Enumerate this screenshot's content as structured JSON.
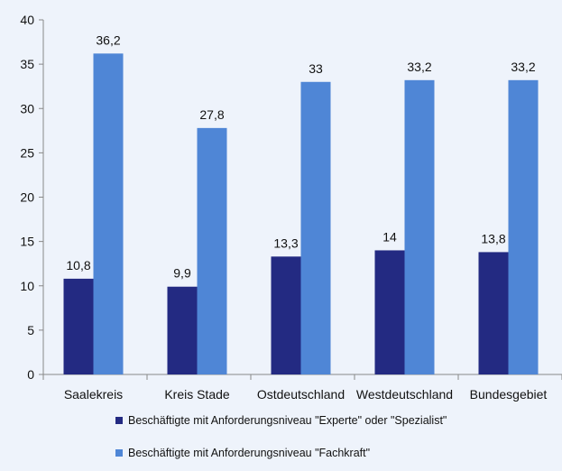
{
  "chart_data": {
    "type": "bar",
    "categories": [
      "Saalekreis",
      "Kreis Stade",
      "Ostdeutschland",
      "Westdeutschland",
      "Bundesgebiet"
    ],
    "series": [
      {
        "name": "Beschäftigte mit Anforderungsniveau \"Experte\" oder \"Spezialist\"",
        "values": [
          10.8,
          9.9,
          13.3,
          14,
          13.8
        ],
        "labels": [
          "10,8",
          "9,9",
          "13,3",
          "14",
          "13,8"
        ],
        "color": "#232a82"
      },
      {
        "name": "Beschäftigte mit Anforderungsniveau \"Fachkraft\"",
        "values": [
          36.2,
          27.8,
          33,
          33.2,
          33.2
        ],
        "labels": [
          "36,2",
          "27,8",
          "33",
          "33,2",
          "33,2"
        ],
        "color": "#4f86d6"
      }
    ],
    "ylim": [
      0,
      40
    ],
    "yticks": [
      0,
      5,
      10,
      15,
      20,
      25,
      30,
      35,
      40
    ],
    "title": "",
    "xlabel": "",
    "ylabel": "",
    "grid": false,
    "legend_position": "bottom"
  }
}
